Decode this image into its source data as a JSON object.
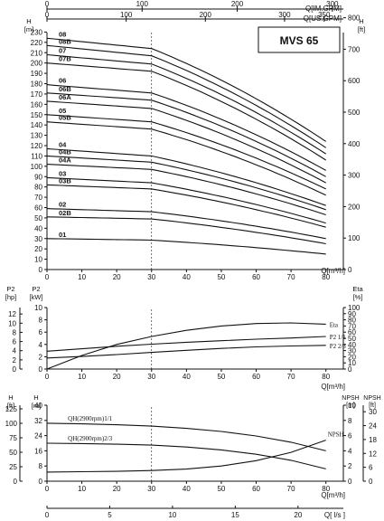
{
  "title": "MVS 65",
  "top_axes": {
    "im_gpm": {
      "label": "Q[IM.GPM]",
      "ticks": [
        0,
        100,
        200,
        300
      ]
    },
    "us_gpm": {
      "label": "Q[US.GPM]",
      "ticks": [
        0,
        100,
        200,
        300,
        350
      ]
    }
  },
  "q_axis": {
    "label": "Q[m³/h]",
    "ticks": [
      0,
      10,
      20,
      30,
      40,
      50,
      60,
      70,
      80
    ]
  },
  "ls_axis": {
    "label": "Q[ l/s ]",
    "ticks": [
      0,
      5,
      10,
      15,
      20
    ]
  },
  "chart_data": [
    {
      "type": "line",
      "name": "head",
      "ylabel_left": "H [m]",
      "ylabel_right": "H [ft]",
      "ylim": [
        0,
        240
      ],
      "yticks": [
        0,
        10,
        20,
        30,
        40,
        50,
        60,
        70,
        80,
        90,
        100,
        110,
        120,
        130,
        140,
        150,
        160,
        170,
        180,
        190,
        200,
        210,
        220,
        230,
        240
      ],
      "ft_ticks": [
        0,
        100,
        200,
        300,
        400,
        500,
        600,
        700,
        800
      ],
      "ft_tick_labels": [
        "0",
        "100",
        "200",
        "300",
        "400",
        "500",
        "600",
        "700",
        "800"
      ],
      "xlim": [
        0,
        80
      ],
      "x": [
        0,
        30,
        80
      ],
      "series": [
        {
          "name": "08",
          "values": [
            224,
            214,
            124
          ]
        },
        {
          "name": "08B",
          "values": [
            217,
            207,
            118
          ]
        },
        {
          "name": "07",
          "values": [
            208,
            199,
            112
          ]
        },
        {
          "name": "07B",
          "values": [
            200,
            192,
            106
          ]
        },
        {
          "name": "06",
          "values": [
            179,
            171,
            96
          ]
        },
        {
          "name": "06B",
          "values": [
            171,
            164,
            90
          ]
        },
        {
          "name": "06A",
          "values": [
            163,
            156,
            84
          ]
        },
        {
          "name": "05",
          "values": [
            150,
            143,
            78
          ]
        },
        {
          "name": "05B",
          "values": [
            143,
            136,
            72
          ]
        },
        {
          "name": "04",
          "values": [
            117,
            110,
            62
          ]
        },
        {
          "name": "04B",
          "values": [
            110,
            104,
            58
          ]
        },
        {
          "name": "04A",
          "values": [
            102,
            97,
            53
          ]
        },
        {
          "name": "03",
          "values": [
            89,
            84,
            45
          ]
        },
        {
          "name": "03B",
          "values": [
            82,
            78,
            41
          ]
        },
        {
          "name": "02",
          "values": [
            59,
            56,
            30
          ]
        },
        {
          "name": "02B",
          "values": [
            51,
            49,
            25
          ]
        },
        {
          "name": "01",
          "values": [
            30,
            28.5,
            15
          ]
        }
      ]
    },
    {
      "type": "line",
      "name": "power-efficiency",
      "ylabel_left": "P2 [kW]",
      "ylabel_far_left": "P2 [hp]",
      "ylabel_right": "Eta [%]",
      "ylim": [
        0,
        10
      ],
      "yticks": [
        0,
        2,
        4,
        6,
        8,
        10
      ],
      "hp_ticks": [
        0,
        2,
        4,
        6,
        8,
        10,
        12
      ],
      "eta_ticks": [
        0,
        10,
        20,
        30,
        40,
        50,
        60,
        70,
        80,
        90,
        100
      ],
      "series": [
        {
          "name": "Eta",
          "axis": "eta",
          "x": [
            0,
            10,
            20,
            30,
            40,
            50,
            60,
            70,
            80
          ],
          "values": [
            0,
            22,
            40,
            53,
            63,
            70,
            74,
            75,
            73
          ]
        },
        {
          "name": "P2 1/1",
          "axis": "kw",
          "x": [
            0,
            10,
            20,
            30,
            40,
            50,
            60,
            70,
            80
          ],
          "values": [
            2.9,
            3.3,
            3.7,
            4.05,
            4.35,
            4.6,
            4.85,
            5.05,
            5.3
          ]
        },
        {
          "name": "P2 2/3",
          "axis": "kw",
          "x": [
            0,
            10,
            20,
            30,
            40,
            50,
            60,
            70,
            80
          ],
          "values": [
            1.8,
            2.05,
            2.35,
            2.7,
            3.05,
            3.35,
            3.6,
            3.75,
            3.85
          ]
        }
      ]
    },
    {
      "type": "line",
      "name": "speed-npsh",
      "ylabel_left": "H [m]",
      "ylabel_far_left": "H [ft]",
      "ylabel_right": "NPSH [m]",
      "ylabel_far_right": "NPSH [ft]",
      "ylim": [
        0,
        40
      ],
      "yticks": [
        0,
        8,
        16,
        24,
        32,
        40
      ],
      "ft_ticks": [
        0,
        25,
        50,
        75,
        100,
        125
      ],
      "npsh_ticks": [
        0,
        2,
        4,
        6,
        8,
        10
      ],
      "npsh_ft_ticks": [
        0,
        6,
        12,
        18,
        24,
        30
      ],
      "series": [
        {
          "name": "QH(2900rpm)1/1",
          "axis": "m",
          "x": [
            0,
            10,
            20,
            30,
            40,
            50,
            60,
            70,
            80
          ],
          "values": [
            30.5,
            30.2,
            29.7,
            29,
            27.8,
            26.2,
            23.8,
            20.5,
            16
          ]
        },
        {
          "name": "QH(2900rpm)2/3",
          "axis": "m",
          "x": [
            0,
            10,
            20,
            30,
            40,
            50,
            60,
            70,
            80
          ],
          "values": [
            20,
            19.8,
            19.5,
            19,
            18,
            16.5,
            14.2,
            11,
            6.5
          ]
        },
        {
          "name": "NPSH",
          "axis": "npsh",
          "x": [
            0,
            10,
            20,
            30,
            40,
            50,
            60,
            70,
            80
          ],
          "values": [
            1.2,
            1.25,
            1.3,
            1.4,
            1.6,
            2.0,
            2.7,
            3.8,
            5.4
          ]
        }
      ]
    }
  ]
}
